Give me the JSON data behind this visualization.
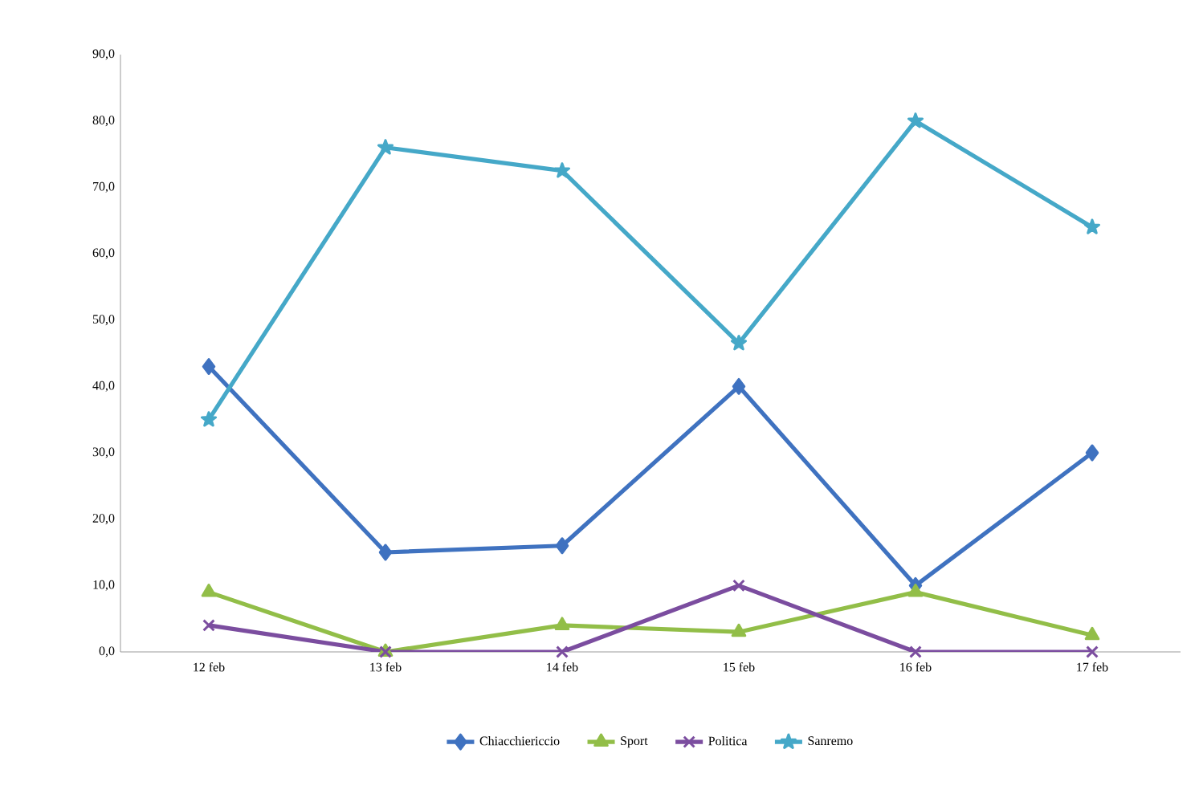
{
  "chart_data": {
    "type": "line",
    "categories": [
      "12 feb",
      "13 feb",
      "14 feb",
      "15 feb",
      "16 feb",
      "17 feb"
    ],
    "series": [
      {
        "name": "Chiacchiericcio",
        "color": "#3f72c0",
        "marker": "diamond",
        "values": [
          43,
          15,
          16,
          40,
          10,
          30
        ]
      },
      {
        "name": "Sport",
        "color": "#92be48",
        "marker": "triangle",
        "values": [
          9,
          0,
          4,
          3,
          9,
          2.5
        ]
      },
      {
        "name": "Politica",
        "color": "#7b4d9f",
        "marker": "cross",
        "values": [
          4,
          0,
          0,
          10,
          0,
          0
        ]
      },
      {
        "name": "Sanremo",
        "color": "#45a8c8",
        "marker": "star",
        "values": [
          35,
          76,
          72.5,
          46.5,
          80,
          64
        ]
      }
    ],
    "ylim": [
      0,
      90
    ],
    "yticks": [
      {
        "value": 0,
        "label": "0,0"
      },
      {
        "value": 10,
        "label": "10,0"
      },
      {
        "value": 20,
        "label": "20,0"
      },
      {
        "value": 30,
        "label": "30,0"
      },
      {
        "value": 40,
        "label": "40,0"
      },
      {
        "value": 50,
        "label": "50,0"
      },
      {
        "value": 60,
        "label": "60,0"
      },
      {
        "value": 70,
        "label": "70,0"
      },
      {
        "value": 80,
        "label": "80,0"
      },
      {
        "value": 90,
        "label": "90,0"
      }
    ],
    "grid": false,
    "legend": "bottom",
    "line_style": "solid"
  }
}
